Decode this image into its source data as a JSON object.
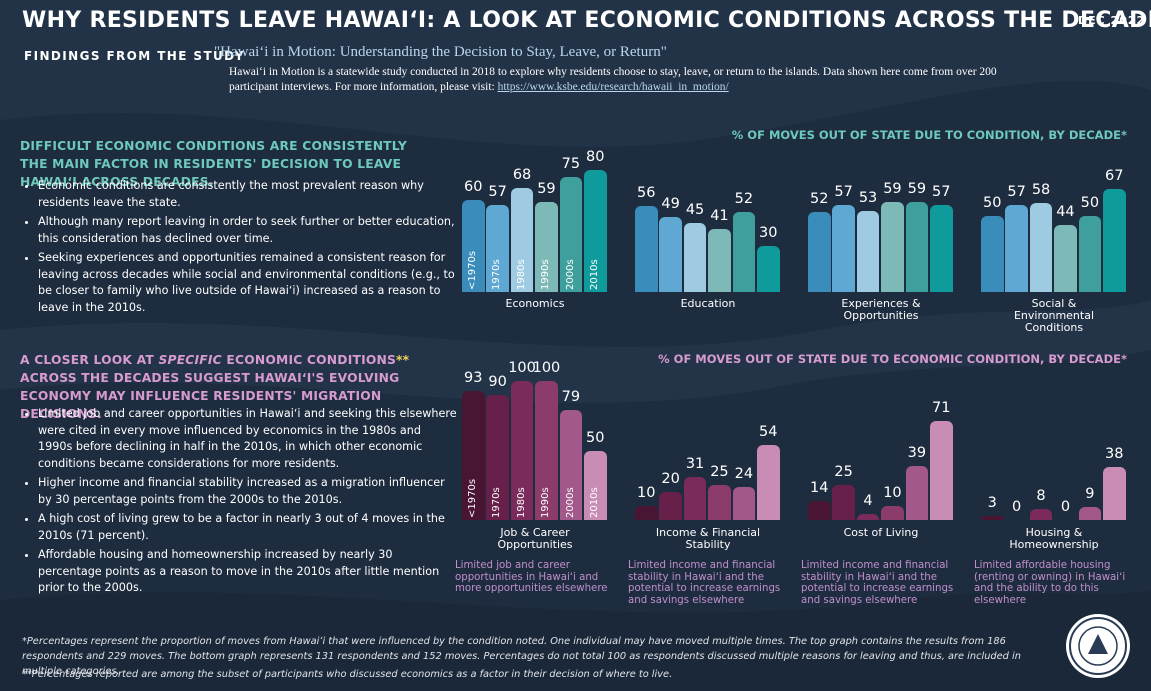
{
  "header": {
    "title": "WHY RESIDENTS LEAVE HAWAIʻI: A LOOK AT ECONOMIC CONDITIONS ACROSS THE DECADES",
    "date": "DEC 2022",
    "findings_label": "FINDINGS FROM THE STUDY",
    "study_title": "\"Hawaiʻi in Motion: Understanding the Decision to Stay, Leave, or Return\"",
    "description": "Hawaiʻi in Motion is a statewide study conducted in 2018 to explore why residents choose to stay, leave, or return to the islands. Data shown here come from over 200 participant interviews. For more information, please visit: ",
    "link": "https://www.ksbe.edu/research/hawaii_in_motion/"
  },
  "sections": [
    {
      "heading": [
        "DIFFICULT ECONOMIC CONDITIONS ARE CONSISTENTLY THE MAIN FACTOR IN RESIDENTS' DECISION TO LEAVE HAWAIʻI ACROSS DECADES."
      ],
      "bullets": [
        "Economic conditions are consistently the most prevalent reason why residents leave the state.",
        "Although many report leaving in order to seek further or better education, this consideration has declined over time.",
        "Seeking experiences and opportunities remained a consistent reason for leaving across decades while social and environmental conditions (e.g., to be closer to family who live outside of Hawaiʻi) increased as a reason to leave in the 2010s."
      ]
    },
    {
      "heading": [
        "A CLOSER LOOK AT ",
        "SPECIFIC",
        " ECONOMIC CONDITIONS",
        "**",
        " ACROSS THE DECADES SUGGEST HAWAIʻI'S EVOLVING ECONOMY MAY INFLUENCE RESIDENTS' MIGRATION DECISIONS."
      ],
      "bullets": [
        "Limited job and career opportunities in Hawaiʻi and seeking this elsewhere were cited in every move influenced by economics in the 1980s and 1990s before declining in half in the 2010s, in which other economic conditions became considerations for more residents.",
        "Higher income and financial stability increased as a migration influencer by 30 percentage points from the 2000s to the 2010s.",
        "A high cost of living grew to be a factor in nearly 3 out of 4 moves in the 2010s (71 percent).",
        "Affordable housing and homeownership increased by nearly 30 percentage points as a reason to move in the 2010s after little mention prior to the 2000s."
      ]
    }
  ],
  "chart_data": [
    {
      "type": "bar",
      "title": "% OF MOVES OUT OF STATE DUE TO CONDITION, BY DECADE*",
      "categories": [
        "<1970s",
        "1970s",
        "1980s",
        "1990s",
        "2000s",
        "2010s"
      ],
      "colors": [
        "#3a8cba",
        "#5ea8d3",
        "#9ecbe2",
        "#7dbab7",
        "#3e9f9c",
        "#0f9a9b"
      ],
      "ylim": [
        0,
        100
      ],
      "series": [
        {
          "name": "Economics",
          "values": [
            60,
            57,
            68,
            59,
            75,
            80
          ]
        },
        {
          "name": "Education",
          "values": [
            56,
            49,
            45,
            41,
            52,
            30
          ]
        },
        {
          "name": "Experiences & Opportunities",
          "values": [
            52,
            57,
            53,
            59,
            59,
            57
          ]
        },
        {
          "name": "Social & Environmental Conditions",
          "values": [
            50,
            57,
            58,
            44,
            50,
            67
          ]
        }
      ]
    },
    {
      "type": "bar",
      "title": "% OF MOVES OUT OF STATE DUE TO ECONOMIC CONDITION, BY DECADE*",
      "categories": [
        "<1970s",
        "1970s",
        "1980s",
        "1990s",
        "2000s",
        "2010s"
      ],
      "colors": [
        "#4a1433",
        "#66204a",
        "#7a2b5b",
        "#8b3c6b",
        "#a2588b",
        "#c98cb5"
      ],
      "ylim": [
        0,
        100
      ],
      "series": [
        {
          "name": "Job & Career Opportunities",
          "values": [
            93,
            90,
            100,
            100,
            79,
            50
          ]
        },
        {
          "name": "Income & Financial Stability",
          "values": [
            10,
            20,
            31,
            25,
            24,
            54
          ]
        },
        {
          "name": "Cost of Living",
          "values": [
            14,
            25,
            4,
            10,
            39,
            71
          ]
        },
        {
          "name": "Housing & Homeownership",
          "values": [
            3,
            0,
            8,
            0,
            9,
            38
          ]
        }
      ],
      "notes": [
        "Limited job and career opportunities in Hawaiʻi and more opportunities elsewhere",
        "Limited income and financial stability in Hawaiʻi and the potential to increase earnings and savings elsewhere",
        "Limited income and financial stability in Hawaiʻi and the potential to increase earnings and savings elsewhere",
        "Limited affordable housing (renting or owning) in Hawaiʻi and the ability to do this elsewhere"
      ]
    }
  ],
  "footnotes": [
    "*Percentages represent the proportion of moves from Hawaiʻi that were influenced by the condition noted. One individual may have moved multiple times. The top graph contains the results from 186 respondents and 229 moves. The bottom graph represents 131 respondents and 152 moves. Percentages do not total 100 as respondents discussed multiple reasons for leaving and thus, are included in multiple categories.",
    "**Percentages reported are among the subset of participants who discussed economics as a factor in their decision of where to live."
  ]
}
